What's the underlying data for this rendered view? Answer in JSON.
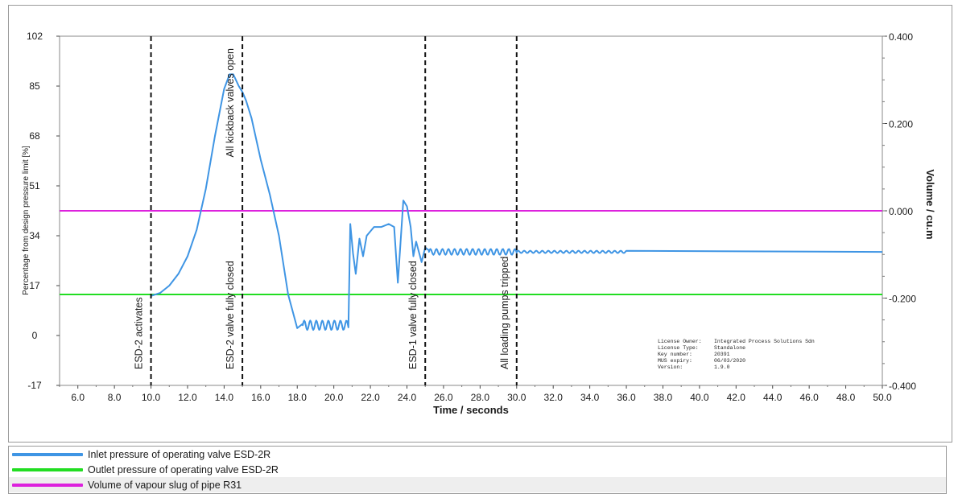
{
  "chart_data": {
    "type": "line",
    "xlabel": "Time / seconds",
    "ylabel_left": "Percentage from design pressure limit [%]",
    "ylabel_right": "Volume / cu.m",
    "xlim": [
      5.0,
      50.0
    ],
    "ylim_left": [
      -17,
      102
    ],
    "ylim_right": [
      -0.4,
      0.4
    ],
    "x_ticks": [
      "6.0",
      "8.0",
      "10.0",
      "12.0",
      "14.0",
      "16.0",
      "18.0",
      "20.0",
      "22.0",
      "24.0",
      "26.0",
      "28.0",
      "30.0",
      "32.0",
      "34.0",
      "36.0",
      "38.0",
      "40.0",
      "42.0",
      "44.0",
      "46.0",
      "48.0",
      "50.0"
    ],
    "y_ticks_left": [
      "102",
      "85",
      "68",
      "51",
      "34",
      "17",
      "0",
      "-17"
    ],
    "y_ticks_right": [
      "0.400",
      "0.200",
      "0.000",
      "-0.200",
      "-0.400"
    ],
    "grid": false,
    "legend_position": "bottom",
    "series": [
      {
        "name": "Inlet pressure of operating valve ESD-2R",
        "color": "#3f95e4",
        "axis": "left",
        "x": [
          10.0,
          10.5,
          11.0,
          11.5,
          12.0,
          12.5,
          13.0,
          13.5,
          14.0,
          14.3,
          14.5,
          14.8,
          15.0,
          15.2,
          15.5,
          16.0,
          16.5,
          17.0,
          17.5,
          18.0,
          18.3,
          20.8,
          20.9,
          21.05,
          21.2,
          21.4,
          21.6,
          21.8,
          22.2,
          22.6,
          23.0,
          23.3,
          23.5,
          23.6,
          23.8,
          24.0,
          24.2,
          24.35,
          24.5,
          24.8,
          25.0,
          25.2
        ],
        "y": [
          13.5,
          14.5,
          17,
          21,
          27,
          36,
          50,
          68,
          84,
          89,
          89,
          85,
          83,
          80,
          74,
          60,
          48,
          34,
          14,
          2.5,
          4,
          3.5,
          38,
          28,
          21,
          33,
          27,
          34,
          37,
          37,
          38,
          37,
          18,
          27,
          46,
          44,
          37,
          27,
          32,
          25,
          30,
          29
        ],
        "ripples": [
          {
            "from": 18.3,
            "to": 20.8,
            "center": 3.5,
            "amplitude": 1.6,
            "period": 0.33
          },
          {
            "from": 25.2,
            "to": 30.0,
            "center": 28.5,
            "amplitude": 1.0,
            "period": 0.33
          },
          {
            "from": 30.0,
            "to": 36.0,
            "center": 28.5,
            "amplitude": 0.4,
            "period": 0.33
          }
        ],
        "steady_value": 28.5
      },
      {
        "name": "Outlet pressure of operating valve ESD-2R",
        "color": "#22dd22",
        "axis": "left",
        "x": [
          5.0,
          50.0
        ],
        "y": [
          14,
          14
        ]
      },
      {
        "name": "Volume of vapour slug of pipe R31",
        "color": "#dd22dd",
        "axis": "right",
        "x": [
          5.0,
          50.0
        ],
        "y": [
          0.0,
          0.0
        ]
      }
    ],
    "events": [
      {
        "x": 10.0,
        "label": "ESD-2 activates"
      },
      {
        "x": 15.0,
        "label": "ESD-2 valve fully closed"
      },
      {
        "x": 15.0,
        "label": "All kickback valves open"
      },
      {
        "x": 25.0,
        "label": "ESD-1 valve fully closed"
      },
      {
        "x": 30.0,
        "label": "All loading pumps tripped"
      }
    ],
    "license": [
      {
        "key": "License Owner:",
        "value": "Integrated Process Solutions Sdn"
      },
      {
        "key": "License Type:",
        "value": "Standalone"
      },
      {
        "key": "Key number:",
        "value": "20391"
      },
      {
        "key": "MUS expiry:",
        "value": "06/03/2020"
      },
      {
        "key": "Version:",
        "value": "1.9.0"
      }
    ]
  }
}
